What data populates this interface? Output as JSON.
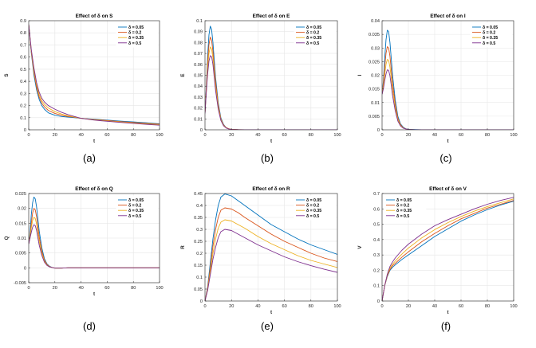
{
  "chart_data": [
    {
      "type": "line",
      "panel_label": "(a)",
      "title": "Effect of δ on S",
      "xlabel": "t",
      "ylabel": "S",
      "xlim": [
        0,
        100
      ],
      "ylim": [
        0,
        0.9
      ],
      "xticks": [
        0,
        20,
        40,
        60,
        80,
        100
      ],
      "yticks": [
        0,
        0.1,
        0.2,
        0.3,
        0.4,
        0.5,
        0.6,
        0.7,
        0.8,
        0.9
      ],
      "xtick_labels": [
        "0",
        "20",
        "40",
        "60",
        "80",
        "100"
      ],
      "ytick_labels": [
        "0",
        "0.1",
        "0.2",
        "0.3",
        "0.4",
        "0.5",
        "0.6",
        "0.7",
        "0.8",
        "0.9"
      ],
      "grid": true,
      "legend_position": "top-right",
      "x": [
        0,
        2,
        4,
        6,
        8,
        10,
        12,
        15,
        20,
        25,
        30,
        35,
        40,
        50,
        60,
        70,
        80,
        90,
        100
      ],
      "series": [
        {
          "name": "δ = 0.05",
          "values": [
            0.87,
            0.63,
            0.45,
            0.33,
            0.25,
            0.2,
            0.17,
            0.14,
            0.12,
            0.11,
            0.105,
            0.1,
            0.095,
            0.088,
            0.08,
            0.072,
            0.065,
            0.058,
            0.05
          ]
        },
        {
          "name": "δ = 0.2",
          "values": [
            0.87,
            0.64,
            0.47,
            0.35,
            0.27,
            0.22,
            0.19,
            0.16,
            0.135,
            0.12,
            0.11,
            0.103,
            0.095,
            0.085,
            0.077,
            0.068,
            0.06,
            0.053,
            0.046
          ]
        },
        {
          "name": "δ = 0.35",
          "values": [
            0.87,
            0.65,
            0.49,
            0.37,
            0.29,
            0.24,
            0.21,
            0.18,
            0.15,
            0.13,
            0.115,
            0.105,
            0.095,
            0.083,
            0.073,
            0.064,
            0.056,
            0.049,
            0.042
          ]
        },
        {
          "name": "δ = 0.5",
          "values": [
            0.87,
            0.66,
            0.51,
            0.39,
            0.31,
            0.26,
            0.23,
            0.2,
            0.17,
            0.145,
            0.125,
            0.11,
            0.095,
            0.08,
            0.07,
            0.061,
            0.053,
            0.045,
            0.038
          ]
        }
      ]
    },
    {
      "type": "line",
      "panel_label": "(b)",
      "title": "Effect of δ on E",
      "xlabel": "t",
      "ylabel": "E",
      "xlim": [
        0,
        100
      ],
      "ylim": [
        0,
        0.1
      ],
      "xticks": [
        0,
        20,
        40,
        60,
        80,
        100
      ],
      "yticks": [
        0,
        0.01,
        0.02,
        0.03,
        0.04,
        0.05,
        0.06,
        0.07,
        0.08,
        0.09,
        0.1
      ],
      "xtick_labels": [
        "0",
        "20",
        "40",
        "60",
        "80",
        "100"
      ],
      "ytick_labels": [
        "0",
        "0.01",
        "0.02",
        "0.03",
        "0.04",
        "0.05",
        "0.06",
        "0.07",
        "0.08",
        "0.09",
        "0.1"
      ],
      "grid": true,
      "legend_position": "top-right",
      "x": [
        0,
        1,
        2,
        3,
        4,
        5,
        6,
        7,
        8,
        10,
        12,
        14,
        16,
        18,
        20,
        25,
        30,
        40,
        60,
        80,
        100
      ],
      "series": [
        {
          "name": "δ = 0.05",
          "values": [
            0.015,
            0.04,
            0.068,
            0.087,
            0.095,
            0.092,
            0.08,
            0.064,
            0.048,
            0.025,
            0.011,
            0.005,
            0.002,
            0.001,
            0.0004,
            0.0001,
            0,
            0,
            0,
            0,
            0
          ]
        },
        {
          "name": "δ = 0.2",
          "values": [
            0.015,
            0.038,
            0.062,
            0.078,
            0.085,
            0.082,
            0.072,
            0.058,
            0.044,
            0.023,
            0.01,
            0.0045,
            0.002,
            0.001,
            0.0004,
            0.0001,
            0,
            0,
            0,
            0,
            0
          ]
        },
        {
          "name": "δ = 0.35",
          "values": [
            0.015,
            0.036,
            0.056,
            0.07,
            0.076,
            0.074,
            0.066,
            0.053,
            0.04,
            0.021,
            0.0095,
            0.004,
            0.0018,
            0.0008,
            0.0003,
            0.0001,
            0,
            0,
            0,
            0,
            0
          ]
        },
        {
          "name": "δ = 0.5",
          "values": [
            0.015,
            0.034,
            0.051,
            0.063,
            0.068,
            0.067,
            0.06,
            0.048,
            0.036,
            0.019,
            0.0085,
            0.0037,
            0.0016,
            0.0007,
            0.0003,
            0.0001,
            0,
            0,
            0,
            0,
            0
          ]
        }
      ]
    },
    {
      "type": "line",
      "panel_label": "(c)",
      "title": "Effect of δ on I",
      "xlabel": "t",
      "ylabel": "I",
      "xlim": [
        0,
        100
      ],
      "ylim": [
        0,
        0.04
      ],
      "xticks": [
        0,
        20,
        40,
        60,
        80,
        100
      ],
      "yticks": [
        0,
        0.005,
        0.01,
        0.015,
        0.02,
        0.025,
        0.03,
        0.035,
        0.04
      ],
      "xtick_labels": [
        "0",
        "20",
        "40",
        "60",
        "80",
        "100"
      ],
      "ytick_labels": [
        "0",
        "0.005",
        "0.01",
        "0.015",
        "0.02",
        "0.025",
        "0.03",
        "0.035",
        "0.04"
      ],
      "grid": true,
      "legend_position": "top-right",
      "x": [
        0,
        1,
        2,
        3,
        4,
        5,
        6,
        7,
        8,
        10,
        12,
        14,
        16,
        18,
        20,
        25,
        30,
        40,
        60,
        80,
        100
      ],
      "series": [
        {
          "name": "δ = 0.05",
          "values": [
            0.013,
            0.018,
            0.026,
            0.033,
            0.0365,
            0.036,
            0.032,
            0.026,
            0.02,
            0.011,
            0.005,
            0.0022,
            0.001,
            0.0004,
            0.0002,
            0.0001,
            0,
            0,
            0,
            0,
            0
          ]
        },
        {
          "name": "δ = 0.2",
          "values": [
            0.013,
            0.017,
            0.023,
            0.028,
            0.0305,
            0.03,
            0.027,
            0.022,
            0.017,
            0.0095,
            0.0043,
            0.0019,
            0.0008,
            0.0003,
            0.0001,
            0,
            0,
            0,
            0,
            0,
            0
          ]
        },
        {
          "name": "δ = 0.35",
          "values": [
            0.013,
            0.016,
            0.02,
            0.024,
            0.0258,
            0.0255,
            0.023,
            0.019,
            0.0145,
            0.0082,
            0.0037,
            0.0016,
            0.0007,
            0.0003,
            0.0001,
            0,
            0,
            0,
            0,
            0,
            0
          ]
        },
        {
          "name": "δ = 0.5",
          "values": [
            0.013,
            0.015,
            0.018,
            0.0205,
            0.022,
            0.0218,
            0.0198,
            0.0163,
            0.0125,
            0.007,
            0.0032,
            0.0014,
            0.0006,
            0.0003,
            0.0001,
            0,
            0,
            0,
            0,
            0,
            0
          ]
        }
      ]
    },
    {
      "type": "line",
      "panel_label": "(d)",
      "title": "Effect of δ on Q",
      "xlabel": "t",
      "ylabel": "Q",
      "xlim": [
        0,
        100
      ],
      "ylim": [
        -0.005,
        0.025
      ],
      "xticks": [
        0,
        20,
        40,
        60,
        80,
        100
      ],
      "yticks": [
        -0.005,
        0,
        0.005,
        0.01,
        0.015,
        0.02,
        0.025
      ],
      "xtick_labels": [
        "0",
        "20",
        "40",
        "60",
        "80",
        "100"
      ],
      "ytick_labels": [
        "-0.005",
        "0",
        "0.005",
        "0.01",
        "0.015",
        "0.02",
        "0.025"
      ],
      "grid": true,
      "legend_position": "top-right",
      "x": [
        0,
        1,
        2,
        3,
        4,
        5,
        6,
        7,
        8,
        10,
        12,
        14,
        16,
        18,
        20,
        25,
        30,
        40,
        60,
        80,
        100
      ],
      "series": [
        {
          "name": "δ = 0.05",
          "values": [
            0.008,
            0.012,
            0.018,
            0.022,
            0.0238,
            0.0232,
            0.0205,
            0.0165,
            0.0125,
            0.0068,
            0.0031,
            0.0013,
            0.0005,
            0.0001,
            -0.0001,
            -0.0001,
            0,
            0,
            0,
            0,
            0
          ]
        },
        {
          "name": "δ = 0.2",
          "values": [
            0.008,
            0.011,
            0.015,
            0.0185,
            0.02,
            0.0195,
            0.0172,
            0.0138,
            0.0105,
            0.0057,
            0.0026,
            0.0011,
            0.0004,
            0.0001,
            -0.0001,
            -0.0001,
            0,
            0,
            0,
            0,
            0
          ]
        },
        {
          "name": "δ = 0.35",
          "values": [
            0.008,
            0.0105,
            0.0135,
            0.016,
            0.017,
            0.0166,
            0.0147,
            0.0118,
            0.009,
            0.0049,
            0.0022,
            0.0009,
            0.0003,
            0.0001,
            -0.0001,
            -0.0001,
            0,
            0,
            0,
            0,
            0
          ]
        },
        {
          "name": "δ = 0.5",
          "values": [
            0.008,
            0.01,
            0.012,
            0.0137,
            0.0145,
            0.0142,
            0.0126,
            0.0101,
            0.0077,
            0.0042,
            0.0019,
            0.0008,
            0.0003,
            0.0001,
            -0.0001,
            -0.0001,
            0,
            0,
            0,
            0,
            0
          ]
        }
      ]
    },
    {
      "type": "line",
      "panel_label": "(e)",
      "title": "Effect of δ on R",
      "xlabel": "t",
      "ylabel": "R",
      "xlim": [
        0,
        100
      ],
      "ylim": [
        0,
        0.45
      ],
      "xticks": [
        0,
        20,
        40,
        60,
        80,
        100
      ],
      "yticks": [
        0,
        0.05,
        0.1,
        0.15,
        0.2,
        0.25,
        0.3,
        0.35,
        0.4,
        0.45
      ],
      "xtick_labels": [
        "0",
        "20",
        "40",
        "60",
        "80",
        "100"
      ],
      "ytick_labels": [
        "0",
        "0.05",
        "0.1",
        "0.15",
        "0.2",
        "0.25",
        "0.3",
        "0.35",
        "0.4",
        "0.45"
      ],
      "grid": true,
      "legend_position": "top-right",
      "x": [
        0,
        2,
        4,
        6,
        8,
        10,
        12,
        15,
        20,
        25,
        30,
        40,
        50,
        60,
        70,
        80,
        90,
        100
      ],
      "series": [
        {
          "name": "δ = 0.05",
          "values": [
            0,
            0.06,
            0.16,
            0.26,
            0.34,
            0.4,
            0.435,
            0.448,
            0.44,
            0.42,
            0.4,
            0.36,
            0.32,
            0.29,
            0.26,
            0.235,
            0.215,
            0.195
          ]
        },
        {
          "name": "δ = 0.2",
          "values": [
            0,
            0.055,
            0.14,
            0.23,
            0.3,
            0.35,
            0.38,
            0.39,
            0.385,
            0.37,
            0.35,
            0.315,
            0.28,
            0.25,
            0.225,
            0.2,
            0.18,
            0.165
          ]
        },
        {
          "name": "δ = 0.35",
          "values": [
            0,
            0.05,
            0.125,
            0.2,
            0.26,
            0.305,
            0.33,
            0.34,
            0.335,
            0.32,
            0.305,
            0.27,
            0.24,
            0.215,
            0.19,
            0.17,
            0.155,
            0.14
          ]
        },
        {
          "name": "δ = 0.5",
          "values": [
            0,
            0.045,
            0.11,
            0.175,
            0.225,
            0.265,
            0.29,
            0.3,
            0.295,
            0.28,
            0.265,
            0.235,
            0.21,
            0.185,
            0.165,
            0.148,
            0.133,
            0.12
          ]
        }
      ]
    },
    {
      "type": "line",
      "panel_label": "(f)",
      "title": "Effect of δ on V",
      "xlabel": "t",
      "ylabel": "V",
      "xlim": [
        0,
        100
      ],
      "ylim": [
        0,
        0.7
      ],
      "xticks": [
        0,
        20,
        40,
        60,
        80,
        100
      ],
      "yticks": [
        0,
        0.1,
        0.2,
        0.3,
        0.4,
        0.5,
        0.6,
        0.7
      ],
      "xtick_labels": [
        "0",
        "20",
        "40",
        "60",
        "80",
        "100"
      ],
      "ytick_labels": [
        "0",
        "0.1",
        "0.2",
        "0.3",
        "0.4",
        "0.5",
        "0.6",
        "0.7"
      ],
      "grid": true,
      "legend_position": "top-left",
      "x": [
        0,
        2,
        4,
        6,
        8,
        10,
        15,
        20,
        30,
        40,
        50,
        60,
        70,
        80,
        90,
        100
      ],
      "series": [
        {
          "name": "δ = 0.05",
          "values": [
            0,
            0.1,
            0.16,
            0.2,
            0.22,
            0.235,
            0.27,
            0.3,
            0.36,
            0.42,
            0.47,
            0.52,
            0.56,
            0.595,
            0.625,
            0.65
          ]
        },
        {
          "name": "δ = 0.2",
          "values": [
            0,
            0.1,
            0.165,
            0.205,
            0.23,
            0.245,
            0.285,
            0.32,
            0.385,
            0.44,
            0.49,
            0.535,
            0.57,
            0.605,
            0.63,
            0.655
          ]
        },
        {
          "name": "δ = 0.35",
          "values": [
            0,
            0.1,
            0.17,
            0.215,
            0.24,
            0.26,
            0.305,
            0.345,
            0.41,
            0.465,
            0.51,
            0.55,
            0.585,
            0.615,
            0.64,
            0.665
          ]
        },
        {
          "name": "δ = 0.5",
          "values": [
            0,
            0.1,
            0.175,
            0.225,
            0.255,
            0.28,
            0.33,
            0.37,
            0.435,
            0.49,
            0.53,
            0.565,
            0.6,
            0.63,
            0.655,
            0.675
          ]
        }
      ]
    }
  ],
  "colors": [
    "#0072BD",
    "#D95319",
    "#EDB120",
    "#7E2F8E"
  ]
}
